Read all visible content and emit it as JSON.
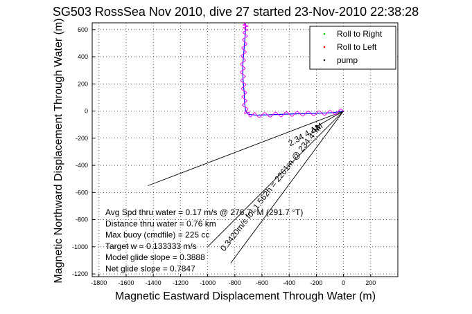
{
  "chart_data": {
    "type": "line",
    "title": "SG503 RossSea Nov 2010, dive 27 started 23-Nov-2010 22:38:28",
    "xlabel": "Magnetic Eastward Displacement Through Water (m)",
    "ylabel": "Magnetic Northward Displacement Through Water (m)",
    "xlim": [
      -1850,
      400
    ],
    "ylim": [
      -1220,
      650
    ],
    "xticks": [
      -1800,
      -1600,
      -1400,
      -1200,
      -1000,
      -800,
      -600,
      -400,
      -200,
      0,
      200
    ],
    "yticks": [
      -1200,
      -1000,
      -800,
      -600,
      -400,
      -200,
      0,
      200,
      400,
      600
    ],
    "grid": true,
    "legend": {
      "placement": "top-right",
      "entries": [
        {
          "label": "Roll to Right",
          "color": "#00cc00",
          "marker": "."
        },
        {
          "label": "Roll to Left",
          "color": "#ff0000",
          "marker": "."
        },
        {
          "label": "pump",
          "color": "#000000",
          "marker": "."
        }
      ]
    },
    "colors": {
      "track": "#0000ff",
      "roll_overlay": "#ff00ff",
      "lines": "#000000"
    },
    "series": [
      {
        "name": "track",
        "x": [
          0,
          -80,
          -160,
          -240,
          -320,
          -400,
          -480,
          -560,
          -640,
          -700,
          -720,
          -728,
          -730,
          -735,
          -740,
          -742,
          -740,
          -735,
          -730,
          -725,
          -722,
          -720,
          -721,
          -726
        ],
        "y": [
          0,
          -12,
          -15,
          -18,
          -20,
          -22,
          -25,
          -28,
          -30,
          -25,
          0,
          60,
          120,
          180,
          240,
          300,
          360,
          420,
          480,
          540,
          590,
          620,
          640,
          635
        ]
      }
    ],
    "reference_lines": [
      {
        "x": [
          0,
          -1440
        ],
        "y": [
          0,
          -550
        ]
      },
      {
        "x": [
          0,
          -1000
        ],
        "y": [
          0,
          -1000
        ]
      },
      {
        "x": [
          0,
          -830
        ],
        "y": [
          0,
          -1120
        ]
      },
      {
        "x": [
          0,
          -210
        ],
        "y": [
          0,
          -120
        ]
      }
    ],
    "line_labels": [
      {
        "text": "2.34 4.ΔM",
        "x": -270,
        "y": -190,
        "angle": -30
      },
      {
        "text": "0.3420m/s for 1.562h = 2261m @ 234.4°M",
        "x": -520,
        "y": -580,
        "angle": -52
      }
    ],
    "annotations": [
      "Avg Spd thru water = 0.17 m/s @ 276.7   °M (291.7 °T)",
      "Distance thru water = 0.76 km",
      "Max buoy (cmdfile) = 225 cc",
      "Target w = 0.133333 m/s",
      "Model glide slope = 0.3888",
      "Net glide slope = 0.7847"
    ]
  }
}
